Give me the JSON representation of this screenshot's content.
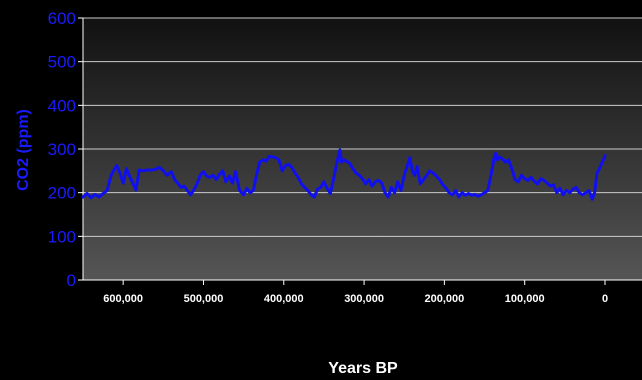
{
  "chart_data": {
    "type": "line",
    "title": "",
    "xlabel": "Years BP",
    "ylabel": "CO2 (ppm)",
    "xlim": [
      650000,
      0
    ],
    "ylim": [
      0,
      600
    ],
    "yticks": [
      0,
      100,
      200,
      300,
      400,
      500,
      600
    ],
    "ytick_labels": [
      "0",
      "100",
      "200",
      "300",
      "400",
      "500",
      "600"
    ],
    "xticks": [
      600000,
      500000,
      400000,
      300000,
      200000,
      100000,
      0
    ],
    "xtick_labels": [
      "600,000",
      "500,000",
      "400,000",
      "300,000",
      "200,000",
      "100,000",
      "0"
    ],
    "grid": true,
    "colors": {
      "line": "#1010ee",
      "plot_bg_top": "#111111",
      "plot_bg_bottom": "#555555",
      "ytick": "#1a1aff",
      "xtick": "#ffffff",
      "grid": "#cccccc"
    },
    "series": [
      {
        "x": [
          650000,
          645000,
          640000,
          635000,
          630000,
          625000,
          620000,
          615000,
          612000,
          608000,
          604000,
          600000,
          596000,
          592000,
          588000,
          584000,
          580000,
          575000,
          570000,
          565000,
          560000,
          555000,
          550000,
          545000,
          540000,
          536000,
          532000,
          528000,
          524000,
          520000,
          516000,
          512000,
          508000,
          504000,
          500000,
          496000,
          492000,
          488000,
          484000,
          480000,
          476000,
          472000,
          468000,
          464000,
          460000,
          455000,
          450000,
          446000,
          442000,
          438000,
          434000,
          430000,
          426000,
          422000,
          418000,
          414000,
          410000,
          406000,
          402000,
          398000,
          394000,
          390000,
          386000,
          382000,
          378000,
          374000,
          370000,
          366000,
          362000,
          358000,
          354000,
          350000,
          346000,
          342000,
          338000,
          334000,
          330000,
          328000,
          325000,
          322000,
          318000,
          314000,
          310000,
          306000,
          302000,
          298000,
          294000,
          290000,
          286000,
          282000,
          278000,
          274000,
          270000,
          266000,
          262000,
          258000,
          254000,
          250000,
          246000,
          243000,
          240000,
          237000,
          234000,
          230000,
          226000,
          222000,
          218000,
          214000,
          210000,
          206000,
          202000,
          198000,
          194000,
          190000,
          186000,
          182000,
          178000,
          174000,
          170000,
          166000,
          162000,
          158000,
          154000,
          150000,
          146000,
          142000,
          138000,
          136000,
          134000,
          132000,
          128000,
          124000,
          120000,
          116000,
          112000,
          108000,
          104000,
          100000,
          96000,
          92000,
          88000,
          84000,
          80000,
          76000,
          72000,
          68000,
          64000,
          60000,
          56000,
          52000,
          48000,
          44000,
          40000,
          36000,
          32000,
          28000,
          24000,
          20000,
          16000,
          13000,
          10000,
          7000,
          4000,
          2000,
          0
        ],
        "values": [
          190,
          198,
          188,
          196,
          190,
          198,
          205,
          240,
          250,
          262,
          245,
          222,
          255,
          238,
          222,
          206,
          252,
          250,
          252,
          252,
          253,
          258,
          250,
          240,
          248,
          230,
          222,
          212,
          215,
          205,
          195,
          206,
          220,
          240,
          248,
          238,
          235,
          240,
          230,
          242,
          250,
          225,
          238,
          222,
          248,
          205,
          195,
          210,
          200,
          205,
          240,
          270,
          275,
          272,
          283,
          282,
          280,
          275,
          250,
          262,
          265,
          258,
          245,
          235,
          220,
          212,
          205,
          195,
          190,
          208,
          212,
          225,
          210,
          198,
          232,
          268,
          298,
          270,
          275,
          272,
          268,
          255,
          245,
          240,
          232,
          220,
          230,
          215,
          225,
          228,
          222,
          200,
          190,
          212,
          200,
          225,
          205,
          240,
          262,
          280,
          250,
          240,
          260,
          220,
          230,
          240,
          250,
          245,
          238,
          230,
          218,
          210,
          200,
          195,
          205,
          190,
          200,
          194,
          198,
          194,
          196,
          192,
          195,
          200,
          205,
          240,
          280,
          290,
          275,
          282,
          278,
          270,
          275,
          255,
          230,
          225,
          240,
          232,
          228,
          235,
          226,
          220,
          232,
          228,
          222,
          215,
          218,
          200,
          210,
          195,
          205,
          200,
          208,
          212,
          200,
          195,
          200,
          205,
          185,
          200,
          245,
          255,
          268,
          275,
          285
        ]
      }
    ]
  }
}
